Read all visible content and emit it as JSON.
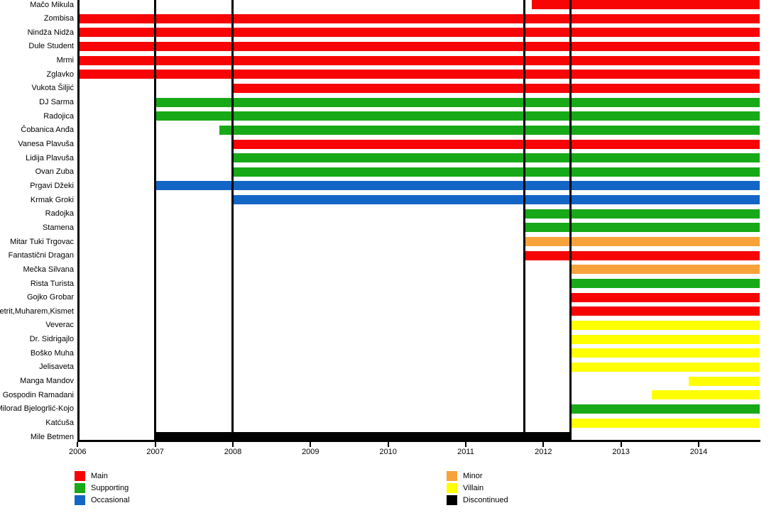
{
  "chart_data": {
    "type": "bar",
    "subtype": "gantt-character-timeline",
    "title": "",
    "xlabel": "",
    "ylabel": "",
    "x_axis": {
      "min_year": 2006,
      "max_year_visible": 2014.79,
      "ticks": [
        "2006",
        "2007",
        "2008",
        "2009",
        "2010",
        "2011",
        "2012",
        "2013",
        "2014"
      ],
      "tick_years": [
        2006,
        2007,
        2008,
        2009,
        2010,
        2011,
        2012,
        2013,
        2014
      ]
    },
    "vertical_lines_years": [
      2006.013,
      2007,
      2008,
      2011.75,
      2012.345
    ],
    "role_colors": {
      "Main": "#f70404",
      "Supporting": "#17a917",
      "Occasional": "#1366c6",
      "Minor": "#f8a23c",
      "Villain": "#ffff00",
      "Discontinued": "#000000"
    },
    "rows": [
      {
        "name": "Mačo Mikula",
        "role": "Main",
        "start": 2011.85,
        "end": 2014.79
      },
      {
        "name": "Zombisa",
        "role": "Main",
        "start": 2006,
        "end": 2014.79
      },
      {
        "name": "Nindža Nidža",
        "role": "Main",
        "start": 2006,
        "end": 2014.79
      },
      {
        "name": "Dule Student",
        "role": "Main",
        "start": 2006,
        "end": 2014.79
      },
      {
        "name": "Mrmi",
        "role": "Main",
        "start": 2006,
        "end": 2014.79
      },
      {
        "name": "Zglavko",
        "role": "Main",
        "start": 2006,
        "end": 2014.79
      },
      {
        "name": "Vukota Šiljić",
        "role": "Main",
        "start": 2008,
        "end": 2014.79
      },
      {
        "name": "DJ Sarma",
        "role": "Supporting",
        "start": 2007,
        "end": 2014.79
      },
      {
        "name": "Radojica",
        "role": "Supporting",
        "start": 2007,
        "end": 2014.79
      },
      {
        "name": "Čobanica Anđa",
        "role": "Supporting",
        "start": 2007.83,
        "end": 2014.79
      },
      {
        "name": "Vanesa Plavuša",
        "role": "Main",
        "start": 2008,
        "end": 2014.79
      },
      {
        "name": "Lidija Plavuša",
        "role": "Supporting",
        "start": 2008,
        "end": 2014.79
      },
      {
        "name": "Ovan Zuba",
        "role": "Supporting",
        "start": 2008,
        "end": 2014.79
      },
      {
        "name": "Prgavi Džeki",
        "role": "Occasional",
        "start": 2007,
        "end": 2014.79
      },
      {
        "name": "Krmak Groki",
        "role": "Occasional",
        "start": 2008,
        "end": 2014.79
      },
      {
        "name": "Radojka",
        "role": "Supporting",
        "start": 2011.75,
        "end": 2014.79
      },
      {
        "name": "Stamena",
        "role": "Supporting",
        "start": 2011.75,
        "end": 2014.79
      },
      {
        "name": "Mitar Tuki Trgovac",
        "role": "Minor",
        "start": 2011.75,
        "end": 2014.79
      },
      {
        "name": "Fantastični Dragan",
        "role": "Main",
        "start": 2011.75,
        "end": 2014.79
      },
      {
        "name": "Mečka Silvana",
        "role": "Minor",
        "start": 2012.345,
        "end": 2014.79
      },
      {
        "name": "Rista Turista",
        "role": "Supporting",
        "start": 2012.345,
        "end": 2014.79
      },
      {
        "name": "Gojko Grobar",
        "role": "Main",
        "start": 2012.345,
        "end": 2014.79
      },
      {
        "name": "Petrit,Muharem,Kismet",
        "role": "Main",
        "start": 2012.345,
        "end": 2014.79
      },
      {
        "name": "Veverac",
        "role": "Villain",
        "start": 2012.345,
        "end": 2014.79
      },
      {
        "name": "Dr. Sidrigajlo",
        "role": "Villain",
        "start": 2012.345,
        "end": 2014.79
      },
      {
        "name": "Boško Muha",
        "role": "Villain",
        "start": 2012.345,
        "end": 2014.79
      },
      {
        "name": "Jelisaveta",
        "role": "Villain",
        "start": 2012.345,
        "end": 2014.79
      },
      {
        "name": "Manga Mandov",
        "role": "Villain",
        "start": 2013.87,
        "end": 2014.79
      },
      {
        "name": "Gospodin Ramadani",
        "role": "Villain",
        "start": 2013.4,
        "end": 2014.79
      },
      {
        "name": "Milorad Bjelogrlić-Kojo",
        "role": "Supporting",
        "start": 2012.345,
        "end": 2014.79
      },
      {
        "name": "Katćuša",
        "role": "Villain",
        "start": 2012.345,
        "end": 2014.79
      },
      {
        "name": "Mile Betmen",
        "role": "Discontinued",
        "start": 2007,
        "end": 2012.345
      }
    ],
    "legend": {
      "position": "bottom",
      "columns": [
        [
          {
            "label": "Main",
            "role": "Main"
          },
          {
            "label": "Supporting",
            "role": "Supporting"
          },
          {
            "label": "Occasional",
            "role": "Occasional"
          }
        ],
        [
          {
            "label": "Minor",
            "role": "Minor"
          },
          {
            "label": "Villain",
            "role": "Villain"
          },
          {
            "label": "Discontinued",
            "role": "Discontinued"
          }
        ]
      ]
    }
  }
}
